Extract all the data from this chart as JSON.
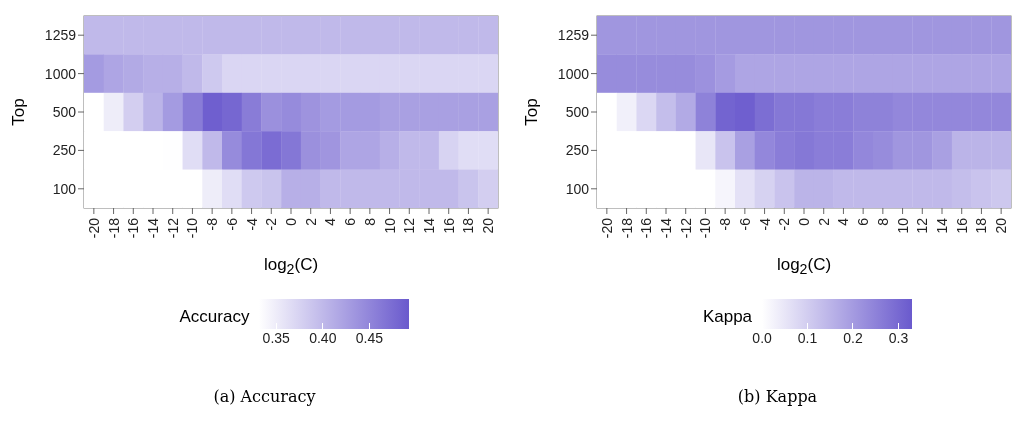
{
  "chart_data": [
    {
      "type": "heatmap",
      "xlabel": "log$_{2}$(C)",
      "ylabel": "Top",
      "clabel": "Accuracy",
      "categories": [
        "-20",
        "-18",
        "-16",
        "-14",
        "-12",
        "-10",
        "-8",
        "-6",
        "-4",
        "-2",
        "0",
        "2",
        "4",
        "6",
        "8",
        "10",
        "12",
        "14",
        "16",
        "18",
        "20"
      ],
      "y_categories": [
        "1259",
        "1000",
        "500",
        "250",
        "100"
      ],
      "cells": [
        [
          0.4,
          0.4,
          0.4,
          0.4,
          0.4,
          0.4,
          0.4,
          0.4,
          0.4,
          0.4,
          0.4,
          0.4,
          0.4,
          0.4,
          0.4,
          0.4,
          0.4,
          0.4,
          0.4,
          0.4,
          0.4
        ],
        [
          0.43,
          0.42,
          0.415,
          0.41,
          0.41,
          0.4,
          0.385,
          0.372,
          0.372,
          0.372,
          0.372,
          0.372,
          0.372,
          0.372,
          0.372,
          0.372,
          0.372,
          0.372,
          0.372,
          0.372,
          0.372
        ],
        [
          0.332,
          0.35,
          0.38,
          0.405,
          0.43,
          0.46,
          0.488,
          0.48,
          0.46,
          0.44,
          0.445,
          0.437,
          0.43,
          0.43,
          0.43,
          0.425,
          0.425,
          0.425,
          0.425,
          0.425,
          0.425
        ],
        [
          0.332,
          0.332,
          0.332,
          0.332,
          0.333,
          0.365,
          0.4,
          0.445,
          0.465,
          0.475,
          0.465,
          0.44,
          0.435,
          0.42,
          0.42,
          0.41,
          0.4,
          0.4,
          0.375,
          0.365,
          0.365
        ],
        [
          0.332,
          0.332,
          0.332,
          0.332,
          0.332,
          0.332,
          0.35,
          0.365,
          0.385,
          0.39,
          0.41,
          0.41,
          0.4,
          0.4,
          0.4,
          0.4,
          0.4,
          0.4,
          0.4,
          0.39,
          0.38
        ]
      ],
      "clim": [
        0.332,
        0.493
      ],
      "cticks": [
        0.35,
        {
          "value": 0.4,
          "label": "0.40"
        },
        0.45
      ],
      "annotations": [
        "(a) Accuracy"
      ]
    },
    {
      "type": "heatmap",
      "xlabel": "log$_{2}$(C)",
      "ylabel": "Top",
      "clabel": "Kappa",
      "categories": [
        "-20",
        "-18",
        "-16",
        "-14",
        "-12",
        "-10",
        "-8",
        "-6",
        "-4",
        "-2",
        "0",
        "2",
        "4",
        "6",
        "8",
        "10",
        "12",
        "14",
        "16",
        "18",
        "20"
      ],
      "y_categories": [
        "1259",
        "1000",
        "500",
        "250",
        "100"
      ],
      "cells": [
        [
          0.21,
          0.21,
          0.21,
          0.21,
          0.21,
          0.21,
          0.21,
          0.21,
          0.21,
          0.21,
          0.21,
          0.21,
          0.21,
          0.21,
          0.21,
          0.21,
          0.21,
          0.21,
          0.21,
          0.21,
          0.21
        ],
        [
          0.23,
          0.23,
          0.23,
          0.23,
          0.23,
          0.22,
          0.2,
          0.18,
          0.18,
          0.18,
          0.18,
          0.18,
          0.18,
          0.18,
          0.18,
          0.18,
          0.18,
          0.18,
          0.18,
          0.18,
          0.18
        ],
        [
          0.0,
          0.03,
          0.08,
          0.13,
          0.17,
          0.25,
          0.31,
          0.32,
          0.29,
          0.27,
          0.27,
          0.26,
          0.26,
          0.25,
          0.25,
          0.24,
          0.24,
          0.24,
          0.24,
          0.24,
          0.24
        ],
        [
          0.0,
          0.0,
          0.0,
          0.0,
          0.0,
          0.05,
          0.12,
          0.19,
          0.24,
          0.26,
          0.27,
          0.26,
          0.26,
          0.24,
          0.23,
          0.21,
          0.21,
          0.19,
          0.15,
          0.15,
          0.15
        ],
        [
          0.0,
          0.0,
          0.0,
          0.0,
          0.0,
          0.0,
          0.02,
          0.06,
          0.09,
          0.12,
          0.15,
          0.15,
          0.14,
          0.14,
          0.14,
          0.14,
          0.14,
          0.14,
          0.13,
          0.12,
          0.11
        ]
      ],
      "clim": [
        0,
        0.33
      ],
      "cticks": [
        {
          "value": 0,
          "label": "0.0"
        },
        0.1,
        0.2,
        0.3
      ],
      "annotations": [
        "(b) Kappa"
      ]
    }
  ]
}
